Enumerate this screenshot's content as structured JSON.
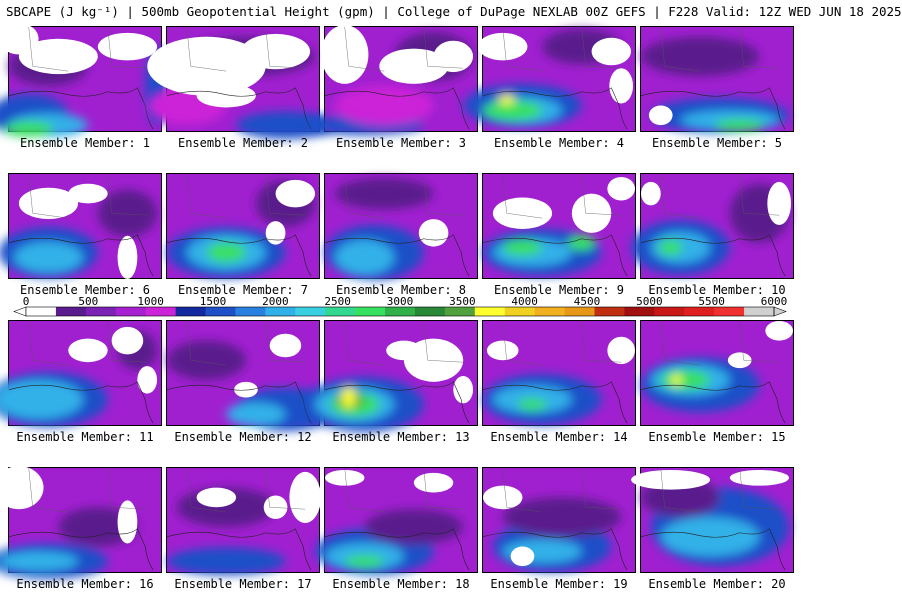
{
  "title": "SBCAPE (J kg⁻¹) | 500mb Geopotential Height (gpm) | College of DuPage NEXLAB 00Z GEFS | F228 Valid: 12Z WED JUN 18 2025",
  "caption_prefix": "Ensemble Member:",
  "members": [
    {
      "label": "Ensemble Member: 1",
      "number": 1
    },
    {
      "label": "Ensemble Member: 2",
      "number": 2
    },
    {
      "label": "Ensemble Member: 3",
      "number": 3
    },
    {
      "label": "Ensemble Member: 4",
      "number": 4
    },
    {
      "label": "Ensemble Member: 5",
      "number": 5
    },
    {
      "label": "Ensemble Member: 6",
      "number": 6
    },
    {
      "label": "Ensemble Member: 7",
      "number": 7
    },
    {
      "label": "Ensemble Member: 8",
      "number": 8
    },
    {
      "label": "Ensemble Member: 9",
      "number": 9
    },
    {
      "label": "Ensemble Member: 10",
      "number": 10
    },
    {
      "label": "Ensemble Member: 11",
      "number": 11
    },
    {
      "label": "Ensemble Member: 12",
      "number": 12
    },
    {
      "label": "Ensemble Member: 13",
      "number": 13
    },
    {
      "label": "Ensemble Member: 14",
      "number": 14
    },
    {
      "label": "Ensemble Member: 15",
      "number": 15
    },
    {
      "label": "Ensemble Member: 16",
      "number": 16
    },
    {
      "label": "Ensemble Member: 17",
      "number": 17
    },
    {
      "label": "Ensemble Member: 18",
      "number": 18
    },
    {
      "label": "Ensemble Member: 19",
      "number": 19
    },
    {
      "label": "Ensemble Member: 20",
      "number": 20
    }
  ],
  "colorbar": {
    "ticks": [
      "0",
      "500",
      "1000",
      "1500",
      "2000",
      "2500",
      "3000",
      "3500",
      "4000",
      "4500",
      "5000",
      "5500",
      "6000"
    ],
    "min": 0,
    "max": 6000,
    "step": 250,
    "colors": [
      "#ffffff",
      "#5a1c8c",
      "#7b22b4",
      "#a61fd0",
      "#cc22d8",
      "#1428a0",
      "#1e50c8",
      "#2880e0",
      "#30b0e8",
      "#38d0e0",
      "#30d890",
      "#38e060",
      "#30b048",
      "#288838",
      "#50a040",
      "#ffff30",
      "#f0d020",
      "#f0b020",
      "#e89818",
      "#c03010",
      "#a01010",
      "#c81818",
      "#e02020",
      "#f03030",
      "#d0d0d0"
    ]
  }
}
